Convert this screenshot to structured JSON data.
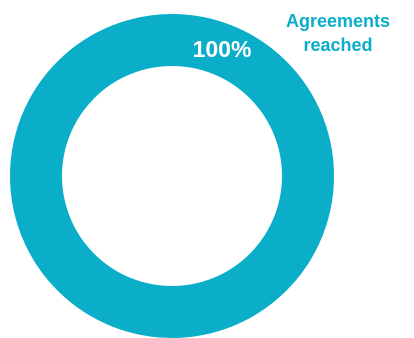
{
  "chart_data": {
    "type": "pie",
    "categories": [
      "Agreements reached"
    ],
    "values": [
      100
    ],
    "data_labels": [
      "100%"
    ],
    "legend": {
      "lines": [
        "Agreements",
        "reached"
      ],
      "placement": "top-right"
    },
    "colors": {
      "ring": "#0aaec8",
      "label": "#ffffff",
      "legend_text": "#0aaec8"
    }
  }
}
